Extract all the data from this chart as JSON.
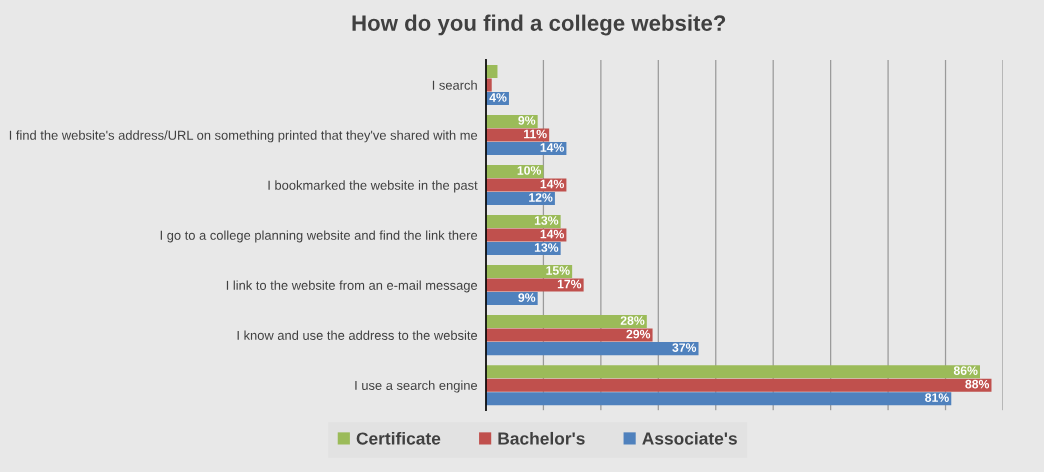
{
  "chart_data": {
    "type": "bar",
    "orientation": "horizontal",
    "title": "How do you find a college website?",
    "categories": [
      "I search",
      "I find the website's address/URL on something printed that they've shared with me",
      "I bookmarked the website in the past",
      "I go to a college planning website and find the link there",
      "I link to the website from an e-mail message",
      "I know and use the address to the website",
      "I use a search engine"
    ],
    "series": [
      {
        "name": "Certificate",
        "color": "#9bbb59",
        "values": [
          2,
          9,
          10,
          13,
          15,
          28,
          86
        ],
        "value_labels": [
          null,
          "9%",
          "10%",
          "13%",
          "15%",
          "28%",
          "86%"
        ]
      },
      {
        "name": "Bachelor's",
        "color": "#c0504d",
        "values": [
          1,
          11,
          14,
          14,
          17,
          29,
          88
        ],
        "value_labels": [
          null,
          "11%",
          "14%",
          "14%",
          "17%",
          "29%",
          "88%"
        ]
      },
      {
        "name": "Associate's",
        "color": "#4f81bd",
        "values": [
          4,
          14,
          12,
          13,
          9,
          37,
          81
        ],
        "value_labels": [
          "4%",
          "14%",
          "12%",
          "13%",
          "9%",
          "37%",
          "81%"
        ]
      }
    ],
    "xlim": [
      0,
      90
    ],
    "xticks": [
      {
        "value": 0,
        "label": null
      },
      {
        "value": 10,
        "label": null
      },
      {
        "value": 20,
        "label": null
      },
      {
        "value": 30,
        "label": null
      },
      {
        "value": 40,
        "label": null
      },
      {
        "value": 50,
        "label": null
      },
      {
        "value": 60,
        "label": null
      },
      {
        "value": 70,
        "label": null
      },
      {
        "value": 80,
        "label": null
      },
      {
        "value": 90,
        "label": null
      }
    ],
    "grid": "x",
    "legend": "bottom",
    "tick_labels": "y"
  }
}
